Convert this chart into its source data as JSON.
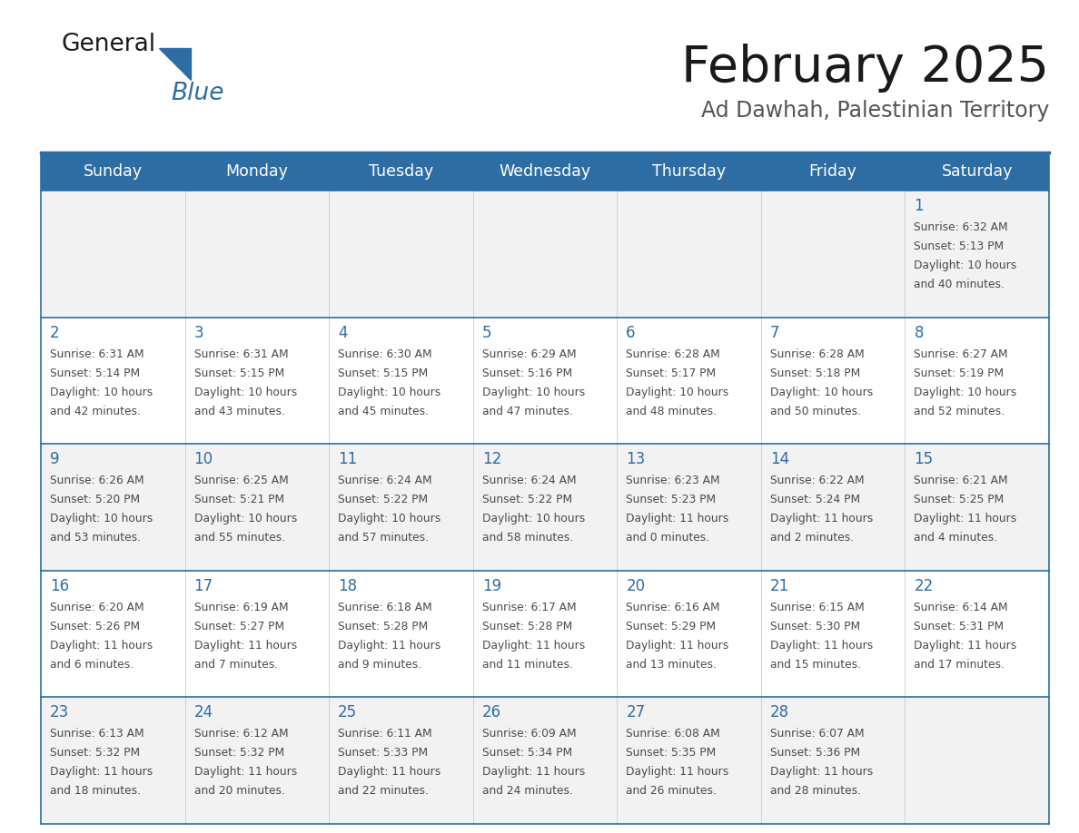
{
  "title": "February 2025",
  "subtitle": "Ad Dawhah, Palestinian Territory",
  "days_of_week": [
    "Sunday",
    "Monday",
    "Tuesday",
    "Wednesday",
    "Thursday",
    "Friday",
    "Saturday"
  ],
  "header_bg": "#2E6DA4",
  "header_text": "#FFFFFF",
  "row_bg_light": "#F2F2F2",
  "row_bg_white": "#FFFFFF",
  "border_color": "#2E6DA4",
  "day_num_color": "#2E6DA4",
  "text_color": "#4a4a4a",
  "title_color": "#1a1a1a",
  "subtitle_color": "#555555",
  "calendar_data": [
    [
      {
        "day": null,
        "sunrise": null,
        "sunset": null,
        "daylight_line1": null,
        "daylight_line2": null
      },
      {
        "day": null,
        "sunrise": null,
        "sunset": null,
        "daylight_line1": null,
        "daylight_line2": null
      },
      {
        "day": null,
        "sunrise": null,
        "sunset": null,
        "daylight_line1": null,
        "daylight_line2": null
      },
      {
        "day": null,
        "sunrise": null,
        "sunset": null,
        "daylight_line1": null,
        "daylight_line2": null
      },
      {
        "day": null,
        "sunrise": null,
        "sunset": null,
        "daylight_line1": null,
        "daylight_line2": null
      },
      {
        "day": null,
        "sunrise": null,
        "sunset": null,
        "daylight_line1": null,
        "daylight_line2": null
      },
      {
        "day": "1",
        "sunrise": "Sunrise: 6:32 AM",
        "sunset": "Sunset: 5:13 PM",
        "daylight_line1": "Daylight: 10 hours",
        "daylight_line2": "and 40 minutes."
      }
    ],
    [
      {
        "day": "2",
        "sunrise": "Sunrise: 6:31 AM",
        "sunset": "Sunset: 5:14 PM",
        "daylight_line1": "Daylight: 10 hours",
        "daylight_line2": "and 42 minutes."
      },
      {
        "day": "3",
        "sunrise": "Sunrise: 6:31 AM",
        "sunset": "Sunset: 5:15 PM",
        "daylight_line1": "Daylight: 10 hours",
        "daylight_line2": "and 43 minutes."
      },
      {
        "day": "4",
        "sunrise": "Sunrise: 6:30 AM",
        "sunset": "Sunset: 5:15 PM",
        "daylight_line1": "Daylight: 10 hours",
        "daylight_line2": "and 45 minutes."
      },
      {
        "day": "5",
        "sunrise": "Sunrise: 6:29 AM",
        "sunset": "Sunset: 5:16 PM",
        "daylight_line1": "Daylight: 10 hours",
        "daylight_line2": "and 47 minutes."
      },
      {
        "day": "6",
        "sunrise": "Sunrise: 6:28 AM",
        "sunset": "Sunset: 5:17 PM",
        "daylight_line1": "Daylight: 10 hours",
        "daylight_line2": "and 48 minutes."
      },
      {
        "day": "7",
        "sunrise": "Sunrise: 6:28 AM",
        "sunset": "Sunset: 5:18 PM",
        "daylight_line1": "Daylight: 10 hours",
        "daylight_line2": "and 50 minutes."
      },
      {
        "day": "8",
        "sunrise": "Sunrise: 6:27 AM",
        "sunset": "Sunset: 5:19 PM",
        "daylight_line1": "Daylight: 10 hours",
        "daylight_line2": "and 52 minutes."
      }
    ],
    [
      {
        "day": "9",
        "sunrise": "Sunrise: 6:26 AM",
        "sunset": "Sunset: 5:20 PM",
        "daylight_line1": "Daylight: 10 hours",
        "daylight_line2": "and 53 minutes."
      },
      {
        "day": "10",
        "sunrise": "Sunrise: 6:25 AM",
        "sunset": "Sunset: 5:21 PM",
        "daylight_line1": "Daylight: 10 hours",
        "daylight_line2": "and 55 minutes."
      },
      {
        "day": "11",
        "sunrise": "Sunrise: 6:24 AM",
        "sunset": "Sunset: 5:22 PM",
        "daylight_line1": "Daylight: 10 hours",
        "daylight_line2": "and 57 minutes."
      },
      {
        "day": "12",
        "sunrise": "Sunrise: 6:24 AM",
        "sunset": "Sunset: 5:22 PM",
        "daylight_line1": "Daylight: 10 hours",
        "daylight_line2": "and 58 minutes."
      },
      {
        "day": "13",
        "sunrise": "Sunrise: 6:23 AM",
        "sunset": "Sunset: 5:23 PM",
        "daylight_line1": "Daylight: 11 hours",
        "daylight_line2": "and 0 minutes."
      },
      {
        "day": "14",
        "sunrise": "Sunrise: 6:22 AM",
        "sunset": "Sunset: 5:24 PM",
        "daylight_line1": "Daylight: 11 hours",
        "daylight_line2": "and 2 minutes."
      },
      {
        "day": "15",
        "sunrise": "Sunrise: 6:21 AM",
        "sunset": "Sunset: 5:25 PM",
        "daylight_line1": "Daylight: 11 hours",
        "daylight_line2": "and 4 minutes."
      }
    ],
    [
      {
        "day": "16",
        "sunrise": "Sunrise: 6:20 AM",
        "sunset": "Sunset: 5:26 PM",
        "daylight_line1": "Daylight: 11 hours",
        "daylight_line2": "and 6 minutes."
      },
      {
        "day": "17",
        "sunrise": "Sunrise: 6:19 AM",
        "sunset": "Sunset: 5:27 PM",
        "daylight_line1": "Daylight: 11 hours",
        "daylight_line2": "and 7 minutes."
      },
      {
        "day": "18",
        "sunrise": "Sunrise: 6:18 AM",
        "sunset": "Sunset: 5:28 PM",
        "daylight_line1": "Daylight: 11 hours",
        "daylight_line2": "and 9 minutes."
      },
      {
        "day": "19",
        "sunrise": "Sunrise: 6:17 AM",
        "sunset": "Sunset: 5:28 PM",
        "daylight_line1": "Daylight: 11 hours",
        "daylight_line2": "and 11 minutes."
      },
      {
        "day": "20",
        "sunrise": "Sunrise: 6:16 AM",
        "sunset": "Sunset: 5:29 PM",
        "daylight_line1": "Daylight: 11 hours",
        "daylight_line2": "and 13 minutes."
      },
      {
        "day": "21",
        "sunrise": "Sunrise: 6:15 AM",
        "sunset": "Sunset: 5:30 PM",
        "daylight_line1": "Daylight: 11 hours",
        "daylight_line2": "and 15 minutes."
      },
      {
        "day": "22",
        "sunrise": "Sunrise: 6:14 AM",
        "sunset": "Sunset: 5:31 PM",
        "daylight_line1": "Daylight: 11 hours",
        "daylight_line2": "and 17 minutes."
      }
    ],
    [
      {
        "day": "23",
        "sunrise": "Sunrise: 6:13 AM",
        "sunset": "Sunset: 5:32 PM",
        "daylight_line1": "Daylight: 11 hours",
        "daylight_line2": "and 18 minutes."
      },
      {
        "day": "24",
        "sunrise": "Sunrise: 6:12 AM",
        "sunset": "Sunset: 5:32 PM",
        "daylight_line1": "Daylight: 11 hours",
        "daylight_line2": "and 20 minutes."
      },
      {
        "day": "25",
        "sunrise": "Sunrise: 6:11 AM",
        "sunset": "Sunset: 5:33 PM",
        "daylight_line1": "Daylight: 11 hours",
        "daylight_line2": "and 22 minutes."
      },
      {
        "day": "26",
        "sunrise": "Sunrise: 6:09 AM",
        "sunset": "Sunset: 5:34 PM",
        "daylight_line1": "Daylight: 11 hours",
        "daylight_line2": "and 24 minutes."
      },
      {
        "day": "27",
        "sunrise": "Sunrise: 6:08 AM",
        "sunset": "Sunset: 5:35 PM",
        "daylight_line1": "Daylight: 11 hours",
        "daylight_line2": "and 26 minutes."
      },
      {
        "day": "28",
        "sunrise": "Sunrise: 6:07 AM",
        "sunset": "Sunset: 5:36 PM",
        "daylight_line1": "Daylight: 11 hours",
        "daylight_line2": "and 28 minutes."
      },
      {
        "day": null,
        "sunrise": null,
        "sunset": null,
        "daylight_line1": null,
        "daylight_line2": null
      }
    ]
  ]
}
